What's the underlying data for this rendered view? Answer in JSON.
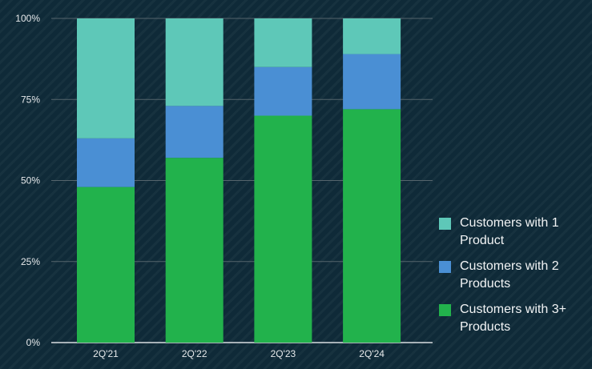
{
  "chart_data": {
    "type": "bar",
    "stacked": true,
    "categories": [
      "2Q'21",
      "2Q'22",
      "2Q'23",
      "2Q'24"
    ],
    "series": [
      {
        "name": "Customers with 3+ Products",
        "values": [
          48,
          57,
          70,
          72
        ],
        "color": "#22b24c"
      },
      {
        "name": "Customers with 2 Products",
        "values": [
          15,
          16,
          15,
          17
        ],
        "color": "#4a8fd4"
      },
      {
        "name": "Customers with 1 Product",
        "values": [
          37,
          27,
          15,
          11
        ],
        "color": "#5ec8b8"
      }
    ],
    "ylim": [
      0,
      100
    ],
    "yticks": [
      "0%",
      "25%",
      "50%",
      "75%",
      "100%"
    ],
    "ytick_values": [
      0,
      25,
      50,
      75,
      100
    ],
    "grid": true,
    "legend_position": "right"
  },
  "legend": {
    "items": [
      {
        "label": "Customers with 1 Product",
        "color": "#5ec8b8"
      },
      {
        "label": "Customers with 2 Products",
        "color": "#4a8fd4"
      },
      {
        "label": "Customers with 3+ Products",
        "color": "#22b24c"
      }
    ]
  }
}
